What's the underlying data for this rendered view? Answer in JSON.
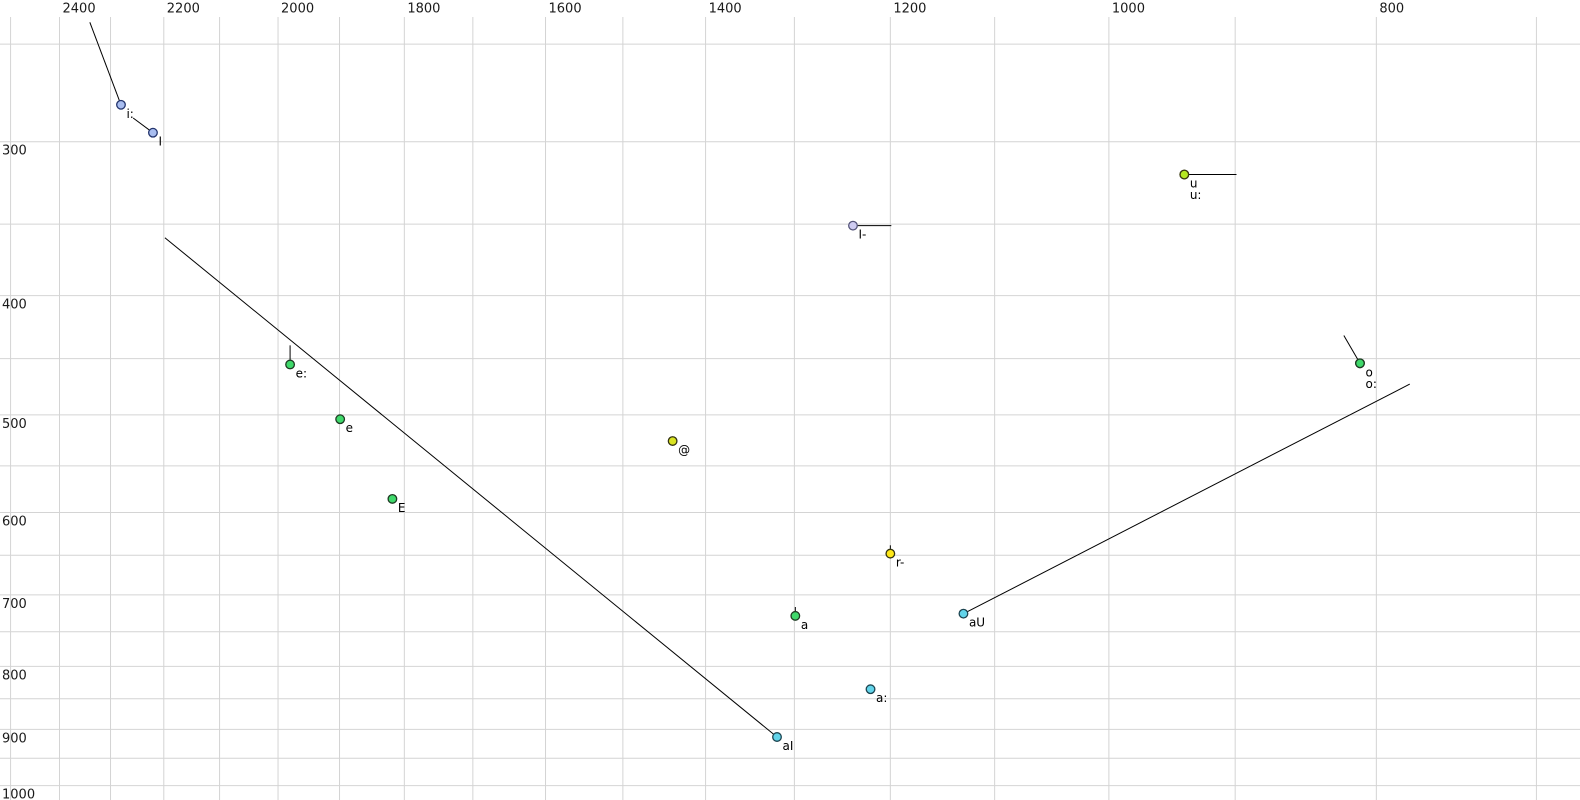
{
  "chart_data": {
    "type": "scatter",
    "title": "",
    "description": "Vowel formant plot: F2 (Hz) on reversed log-scaled horizontal axis (labels along top), F1 (Hz) on log-scaled vertical axis (labels along left). Colored circle markers mark vowel nuclei; black line segments show diphthong/glide trajectories from the nucleus toward the offglide.",
    "x_axis": {
      "unit": "Hz",
      "scale": "log",
      "reversed": true,
      "tick_labels": [
        2400,
        2200,
        2000,
        1800,
        1600,
        1400,
        1200,
        1000,
        800
      ],
      "grid_min": 700,
      "grid_max": 2500,
      "grid_step": 100
    },
    "y_axis": {
      "unit": "Hz",
      "scale": "log",
      "tick_labels": [
        300,
        400,
        500,
        600,
        700,
        800,
        900,
        1000
      ],
      "grid_min": 250,
      "grid_max": 1000,
      "grid_step": 50
    },
    "points": [
      {
        "label": "i:",
        "f1": 280,
        "f2": 2280,
        "fill": "#a8bdf0",
        "ring": "#24356e",
        "glide": {
          "f1": 240,
          "f2": 2340
        },
        "label_row": 0
      },
      {
        "label": "I",
        "f1": 295,
        "f2": 2220,
        "fill": "#a8bdf0",
        "ring": "#24356e",
        "glide": {
          "f1": 287,
          "f2": 2257
        },
        "label_row": 0
      },
      {
        "label": "u",
        "f1": 319,
        "f2": 939,
        "fill": "#b5e822",
        "ring": "#3a3a10",
        "glide": {
          "f1": 319,
          "f2": 899
        },
        "label_row": 0
      },
      {
        "label": "u:",
        "f1": 319,
        "f2": 939,
        "fill": "#b5e822",
        "ring": "#3a3a10",
        "glide": null,
        "label_row": 1
      },
      {
        "label": "I-",
        "f1": 351,
        "f2": 1238,
        "fill": "#cfccf2",
        "ring": "#55557a",
        "glide": {
          "f1": 351,
          "f2": 1199
        },
        "label_row": 0
      },
      {
        "label": "o",
        "f1": 454,
        "f2": 811,
        "fill": "#3fd96b",
        "ring": "#1d3a22",
        "glide": {
          "f1": 431,
          "f2": 822
        },
        "label_row": 0
      },
      {
        "label": "o:",
        "f1": 454,
        "f2": 811,
        "fill": "#3fd96b",
        "ring": "#1d3a22",
        "glide": null,
        "label_row": 1
      },
      {
        "label": "e:",
        "f1": 455,
        "f2": 1980,
        "fill": "#3fd96b",
        "ring": "#1d3a22",
        "glide": {
          "f1": 439,
          "f2": 1980
        },
        "label_row": 0
      },
      {
        "label": "e",
        "f1": 504,
        "f2": 1899,
        "fill": "#3fd96b",
        "ring": "#1d3a22",
        "glide": null,
        "label_row": 0
      },
      {
        "label": "@",
        "f1": 525,
        "f2": 1439,
        "fill": "#d9e322",
        "ring": "#333311",
        "glide": null,
        "label_row": 0
      },
      {
        "label": "E",
        "f1": 585,
        "f2": 1818,
        "fill": "#3fd96b",
        "ring": "#1d3a22",
        "glide": null,
        "label_row": 0
      },
      {
        "label": "r-",
        "f1": 648,
        "f2": 1200,
        "fill": "#ffe819",
        "ring": "#33330e",
        "glide": {
          "f1": 638,
          "f2": 1200
        },
        "label_row": 0
      },
      {
        "label": "a",
        "f1": 728,
        "f2": 1299,
        "fill": "#3fd96b",
        "ring": "#1d3a22",
        "glide": {
          "f1": 716,
          "f2": 1299
        },
        "label_row": 0
      },
      {
        "label": "aU",
        "f1": 725,
        "f2": 1129,
        "fill": "#62d4ea",
        "ring": "#1c4450",
        "glide": {
          "f1": 472,
          "f2": 778
        },
        "label_row": 0
      },
      {
        "label": "a:",
        "f1": 835,
        "f2": 1220,
        "fill": "#62d4ea",
        "ring": "#1c4450",
        "glide": null,
        "label_row": 0
      },
      {
        "label": "aI",
        "f1": 913,
        "f2": 1319,
        "fill": "#62d4ea",
        "ring": "#1c4450",
        "glide": {
          "f1": 359,
          "f2": 2198
        },
        "label_row": 0
      }
    ],
    "legend": null,
    "grid": true
  },
  "colors": {
    "background": "#ffffff",
    "gridline": "#d4d4d4",
    "trajectory": "#000000",
    "tick_text": "#1a1a1a",
    "point_text": "#000000"
  }
}
